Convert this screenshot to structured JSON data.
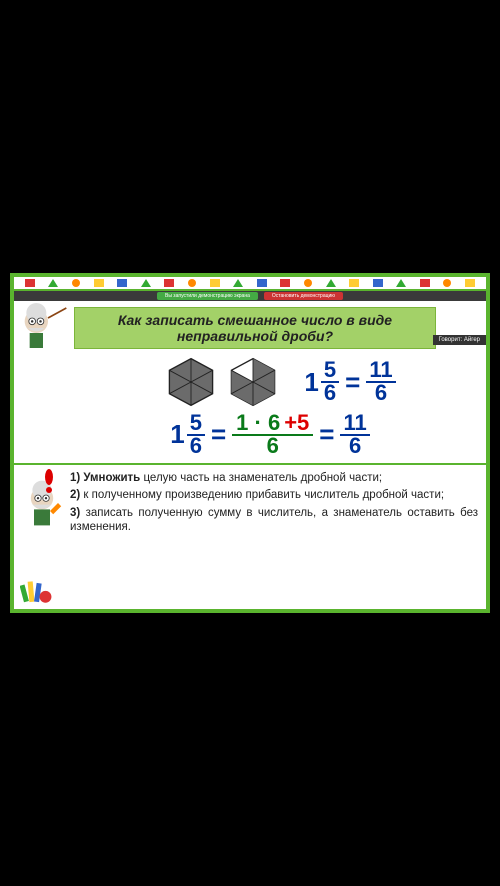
{
  "title_line1": "Как записать смешанное число в виде",
  "title_line2": "неправильной дроби?",
  "speak_badge": "Говорит: Айгер",
  "notif_left": "Вы запустили демонстрацию экрана",
  "notif_right": "Остановить демонстрацию",
  "eq1": {
    "whole": "1",
    "num": "5",
    "den": "6",
    "rnum": "11",
    "rden": "6"
  },
  "eq2": {
    "whole": "1",
    "num": "5",
    "den": "6",
    "mid_a": "1 · 6",
    "mid_plus": "+5",
    "mid_den": "6",
    "rnum": "11",
    "rden": "6"
  },
  "steps": {
    "s1_lead": "1) Умножить",
    "s1_rest": "целую часть на знаменатель дробной части;",
    "s2_lead": "2) ",
    "s2_rest": "к полученному произведению прибавить числитель дробной части;",
    "s3_lead": "3) ",
    "s3_rest": "записать полученную сумму в числитель, а знаменатель оставить без изменения."
  },
  "colors": {
    "blue": "#003399",
    "green": "#0a7a1a",
    "red": "#d00000",
    "hex_fill": "#6b6b6b",
    "hex_stroke": "#222",
    "ribbon": "#a3d168",
    "border": "#5ab42e"
  },
  "top_shapes": [
    "sq-r",
    "tri-g",
    "circ-o",
    "sq-y",
    "sq-b",
    "tri-g",
    "sq-r",
    "circ-o",
    "sq-y",
    "tri-g",
    "sq-b",
    "sq-r",
    "circ-o",
    "tri-g",
    "sq-y",
    "sq-b",
    "tri-g",
    "sq-r",
    "circ-o",
    "sq-y"
  ]
}
